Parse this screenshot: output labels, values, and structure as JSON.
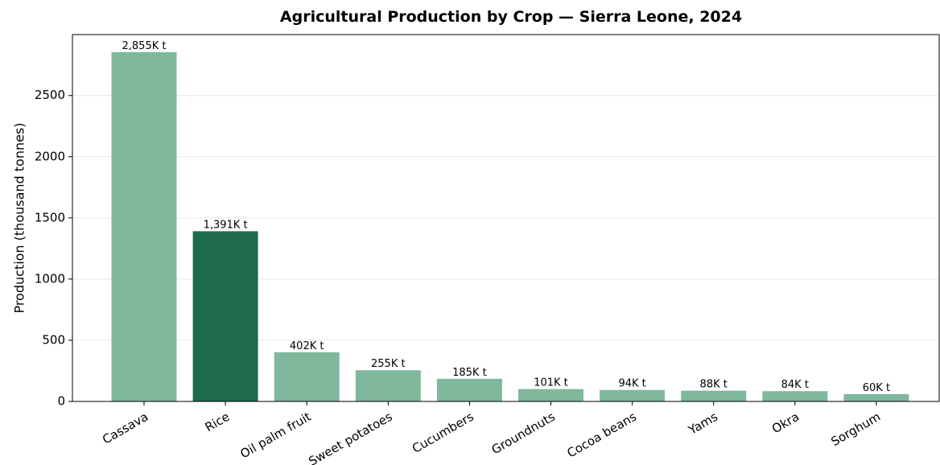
{
  "chart_data": {
    "type": "bar",
    "title": "Agricultural Production by Crop — Sierra Leone, 2024",
    "y_label": "Production (thousand tonnes)",
    "categories": [
      "Cassava",
      "Rice",
      "Oil palm fruit",
      "Sweet potatoes",
      "Cucumbers",
      "Groundnuts",
      "Cocoa beans",
      "Yams",
      "Okra",
      "Sorghum"
    ],
    "values": [
      2855,
      1391,
      402,
      255,
      185,
      101,
      94,
      88,
      84,
      60
    ],
    "value_labels": [
      "2,855K t",
      "1,391K t",
      "402K t",
      "255K t",
      "185K t",
      "101K t",
      "94K t",
      "88K t",
      "84K t",
      "60K t"
    ],
    "colors": [
      "#7fb89d",
      "#1d6b4a",
      "#7fb89d",
      "#7fb89d",
      "#7fb89d",
      "#7fb89d",
      "#7fb89d",
      "#7fb89d",
      "#7fb89d",
      "#7fb89d"
    ],
    "ylim": [
      0,
      2998
    ],
    "yticks": [
      0,
      500,
      1000,
      1500,
      2000,
      2500
    ],
    "grid": true
  }
}
